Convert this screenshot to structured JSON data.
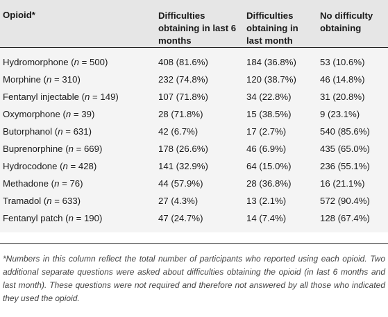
{
  "header": {
    "col1": "Opioid*",
    "col2": "Difficulties obtaining in last 6 months",
    "col3": "Difficulties obtaining in last month",
    "col4": "No difficulty obtaining"
  },
  "rows": [
    {
      "name": "Hydromorphone",
      "n": "500",
      "c2": "408 (81.6%)",
      "c3": "184 (36.8%)",
      "c4": "53 (10.6%)"
    },
    {
      "name": "Morphine",
      "n": "310",
      "c2": "232 (74.8%)",
      "c3": "120 (38.7%)",
      "c4": "46 (14.8%)"
    },
    {
      "name": "Fentanyl injectable",
      "n": "149",
      "c2": "107 (71.8%)",
      "c3": "34 (22.8%)",
      "c4": "31 (20.8%)"
    },
    {
      "name": "Oxymorphone",
      "n": "39",
      "c2": "28 (71.8%)",
      "c3": "15 (38.5%)",
      "c4": "9 (23.1%)"
    },
    {
      "name": "Butorphanol",
      "n": "631",
      "c2": "42 (6.7%)",
      "c3": "17 (2.7%)",
      "c4": "540 (85.6%)"
    },
    {
      "name": "Buprenorphine",
      "n": "669",
      "c2": "178 (26.6%)",
      "c3": "46 (6.9%)",
      "c4": "435 (65.0%)"
    },
    {
      "name": "Hydrocodone",
      "n": "428",
      "c2": "141 (32.9%)",
      "c3": "64 (15.0%)",
      "c4": "236 (55.1%)"
    },
    {
      "name": "Methadone",
      "n": "76",
      "c2": "44 (57.9%)",
      "c3": "28 (36.8%)",
      "c4": "16 (21.1%)"
    },
    {
      "name": "Tramadol",
      "n": "633",
      "c2": "27 (4.3%)",
      "c3": "13 (2.1%)",
      "c4": "572 (90.4%)"
    },
    {
      "name": "Fentanyl patch",
      "n": "190",
      "c2": "47 (24.7%)",
      "c3": "14 (7.4%)",
      "c4": "128 (67.4%)"
    }
  ],
  "footnote": "*Numbers in this column reflect the total number of participants who reported using each opioid. Two additional separate questions were asked about difficulties obtaining the opioid (in last 6 months and last month). These questions were not required and therefore not answered by all those who indicated they used the opioid."
}
